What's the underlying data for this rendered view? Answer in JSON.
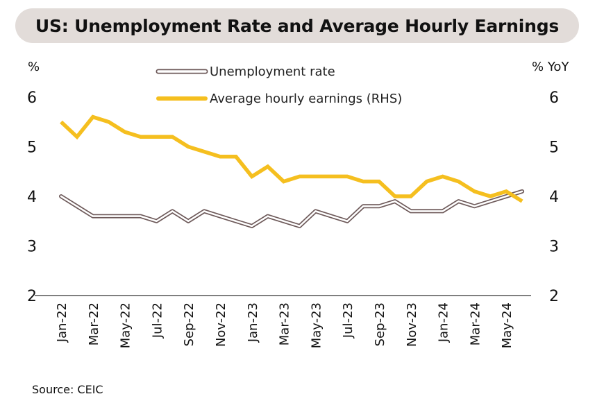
{
  "chart_data": {
    "type": "line",
    "title": "US: Unemployment Rate and Average Hourly Earnings",
    "left_unit": "%",
    "right_unit": "% YoY",
    "y_ticks": [
      "2",
      "3",
      "4",
      "5",
      "6"
    ],
    "ylim": [
      2,
      6.5
    ],
    "y2lim": [
      2,
      6.5
    ],
    "x_tick_labels": [
      "Jan-22",
      "Mar-22",
      "May-22",
      "Jul-22",
      "Sep-22",
      "Nov-22",
      "Jan-23",
      "Mar-23",
      "May-23",
      "Jul-23",
      "Sep-23",
      "Nov-23",
      "Jan-24",
      "Mar-24",
      "May-24"
    ],
    "months": [
      "Jan-22",
      "Feb-22",
      "Mar-22",
      "Apr-22",
      "May-22",
      "Jun-22",
      "Jul-22",
      "Aug-22",
      "Sep-22",
      "Oct-22",
      "Nov-22",
      "Dec-22",
      "Jan-23",
      "Feb-23",
      "Mar-23",
      "Apr-23",
      "May-23",
      "Jun-23",
      "Jul-23",
      "Aug-23",
      "Sep-23",
      "Oct-23",
      "Nov-23",
      "Dec-23",
      "Jan-24",
      "Feb-24",
      "Mar-24",
      "Apr-24",
      "May-24",
      "Jun-24"
    ],
    "series": [
      {
        "name": "Unemployment rate",
        "axis": "left",
        "color": "#6e5a5a",
        "style": "outlined",
        "values": [
          4.0,
          3.8,
          3.6,
          3.6,
          3.6,
          3.6,
          3.5,
          3.7,
          3.5,
          3.7,
          3.6,
          3.5,
          3.4,
          3.6,
          3.5,
          3.4,
          3.7,
          3.6,
          3.5,
          3.8,
          3.8,
          3.9,
          3.7,
          3.7,
          3.7,
          3.9,
          3.8,
          3.9,
          4.0,
          4.1
        ]
      },
      {
        "name": "Average hourly earnings (RHS)",
        "axis": "right",
        "color": "#f5bf1f",
        "style": "solid",
        "values": [
          5.5,
          5.2,
          5.6,
          5.5,
          5.3,
          5.2,
          5.2,
          5.2,
          5.0,
          4.9,
          4.8,
          4.8,
          4.4,
          4.6,
          4.3,
          4.4,
          4.4,
          4.4,
          4.4,
          4.3,
          4.3,
          4.0,
          4.0,
          4.3,
          4.4,
          4.3,
          4.1,
          4.0,
          4.1,
          3.9
        ]
      }
    ]
  },
  "source": "Source: CEIC"
}
